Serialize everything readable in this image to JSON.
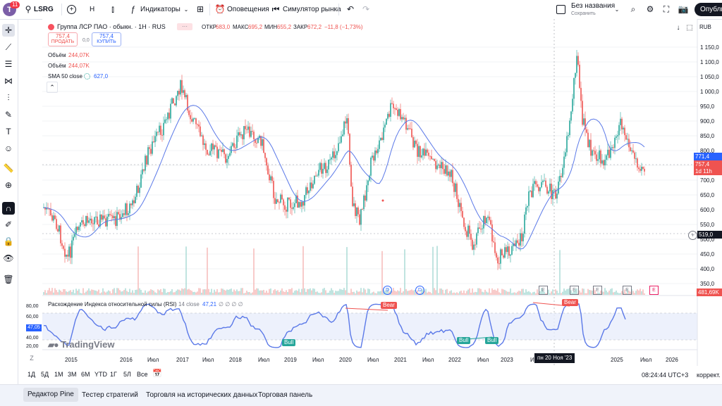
{
  "topbar": {
    "avatar_letter": "T",
    "avatar_badge": "11",
    "symbol": "LSRG",
    "interval": "H",
    "indicators_label": "Индикаторы",
    "alerts_label": "Оповещения",
    "replay_label": "Симулятор рынка",
    "layout_name": "Без названия",
    "layout_status": "Сохранить",
    "publish_label": "Опублик"
  },
  "legend": {
    "title": "Группа ЛСР ПАО · обыкн. · 1Н · RUS",
    "open_label": "ОТКР",
    "open_value": "683,0",
    "high_label": "МАКС",
    "high_value": "695,2",
    "low_label": "МИН",
    "low_value": "655,2",
    "close_label": "ЗАКР",
    "close_value": "672,2",
    "change_value": "−11,8 (−1,73%)",
    "sell_price": "757,4",
    "sell_label": "ПРОДАТЬ",
    "spread": "0,0",
    "buy_price": "757,4",
    "buy_label": "КУПИТЬ",
    "volume1_label": "Объём",
    "volume1_value": "244,07K",
    "volume2_label": "Объём",
    "volume2_value": "244,07K",
    "sma_label": "SMA 50 close",
    "sma_value": "627,0",
    "currency": "RUB"
  },
  "rsi_legend": {
    "title": "Расхождение Индекса относительной силы (RSI)",
    "param": "14 close",
    "value": "47,21",
    "extra": "∅ ∅ ∅ ∅",
    "bull_label": "Bull",
    "bear_label": "Bear",
    "axis_labels": [
      "80,00",
      "60,00",
      "40,00",
      "20,00"
    ],
    "current_value": "47,05"
  },
  "price_axis": {
    "labels": [
      "1 150,0",
      "1 100,0",
      "1 050,0",
      "1 000,0",
      "950,0",
      "900,0",
      "850,0",
      "800,0",
      "750,0",
      "700,0",
      "650,0",
      "600,0",
      "550,0",
      "500,0",
      "450,0",
      "400,0",
      "350,0"
    ],
    "badge_sma": "771,4",
    "badge_price": "757,4",
    "badge_countdown": "1d 11h",
    "badge_cursor": "519,0",
    "badge_volume": "481,69K"
  },
  "time_axis": {
    "labels": [
      "2015",
      "2016",
      "Июл",
      "2017",
      "Июл",
      "2018",
      "Июл",
      "2019",
      "Июл",
      "2020",
      "Июл",
      "2021",
      "Июл",
      "2022",
      "Июл",
      "2023",
      "Ию",
      "Июл",
      "2025",
      "Июл",
      "2026"
    ],
    "cursor_label": "пн 20 Ноя '23"
  },
  "events": {
    "dividend": "D",
    "earnings": "E"
  },
  "watermark": "TradingView",
  "ranges": [
    "1Д",
    "5Д",
    "1М",
    "3М",
    "6М",
    "YTD",
    "1Г",
    "5Л",
    "Все"
  ],
  "clock": "08:24:44 UTC+3",
  "adjust_label": "коррект.",
  "bottom_tabs": [
    "Редактор Pine",
    "Тестер стратегий",
    "Торговля на исторических данных",
    "Торговая панель"
  ],
  "colors": {
    "up": "#26a69a",
    "down": "#ef5350",
    "sma": "#2962ff",
    "rsi": "#7e57c2",
    "accent": "#2962ff"
  }
}
